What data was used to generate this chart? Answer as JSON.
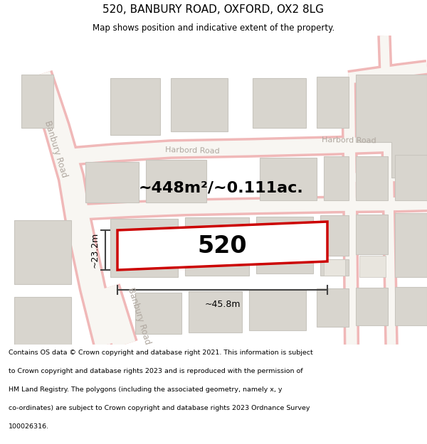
{
  "title": "520, BANBURY ROAD, OXFORD, OX2 8LG",
  "subtitle": "Map shows position and indicative extent of the property.",
  "area_label": "~448m²/~0.111ac.",
  "property_number": "520",
  "dim_height": "~23.2m",
  "dim_width": "~45.8m",
  "map_bg": "#f5f3f0",
  "road_stroke": "#f0b8b8",
  "building_fill": "#d8d5ce",
  "building_edge": "#c8c5be",
  "property_outline": "#cc0000",
  "property_fill": "#ffffff",
  "road_label_color": "#b0a8a0",
  "dim_color": "#333333",
  "title_color": "#000000",
  "footer_lines": [
    "Contains OS data © Crown copyright and database right 2021. This information is subject",
    "to Crown copyright and database rights 2023 and is reproduced with the permission of",
    "HM Land Registry. The polygons (including the associated geometry, namely x, y",
    "co-ordinates) are subject to Crown copyright and database rights 2023 Ordnance Survey",
    "100026316."
  ]
}
